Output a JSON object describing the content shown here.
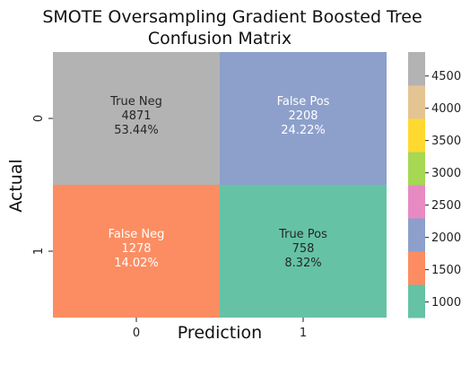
{
  "chart_data": {
    "type": "heatmap",
    "title_lines": [
      "SMOTE Oversampling Gradient Boosted Tree",
      "Confusion Matrix"
    ],
    "xlabel": "Prediction",
    "ylabel": "Actual",
    "x_ticks": [
      "0",
      "1"
    ],
    "y_ticks": [
      "0",
      "1"
    ],
    "cells": [
      {
        "row": 0,
        "col": 0,
        "label": "True Neg",
        "count": "4871",
        "percent": "53.44%",
        "value": 4871,
        "color": "#b3b3b3",
        "text_color": "#262626"
      },
      {
        "row": 0,
        "col": 1,
        "label": "False Pos",
        "count": "2208",
        "percent": "24.22%",
        "value": 2208,
        "color": "#8da0cb",
        "text_color": "#ffffff"
      },
      {
        "row": 1,
        "col": 0,
        "label": "False Neg",
        "count": "1278",
        "percent": "14.02%",
        "value": 1278,
        "color": "#fc8d62",
        "text_color": "#ffffff"
      },
      {
        "row": 1,
        "col": 1,
        "label": "True Pos",
        "count": "758",
        "percent": "8.32%",
        "value": 758,
        "color": "#66c2a5",
        "text_color": "#262626"
      }
    ],
    "colorbar": {
      "colormap": "Set2",
      "vmin": 758,
      "vmax": 4871,
      "colors": [
        "#66c2a5",
        "#fc8d62",
        "#8da0cb",
        "#e78ac3",
        "#a6d854",
        "#ffd92f",
        "#e5c494",
        "#b3b3b3"
      ],
      "ticks": [
        1000,
        1500,
        2000,
        2500,
        3000,
        3500,
        4000,
        4500
      ]
    }
  }
}
